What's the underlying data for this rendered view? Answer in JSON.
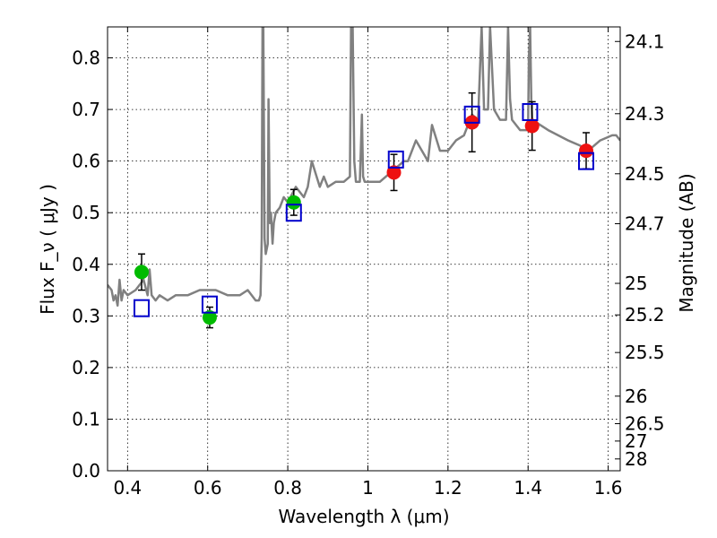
{
  "chart_data": {
    "type": "scatter",
    "xlabel": "Wavelength  λ (μm)",
    "ylabel": "Flux  F_ν  ( μJy )",
    "y2label": "Magnitude (AB)",
    "xlim": [
      0.35,
      1.63
    ],
    "ylim": [
      0.0,
      0.86
    ],
    "grid": true,
    "x_ticks": [
      0.4,
      0.6,
      0.8,
      1.0,
      1.2,
      1.4,
      1.6
    ],
    "x_tick_labels": [
      "0.4",
      "0.6",
      "0.8",
      "1",
      "1.2",
      "1.4",
      "1.6"
    ],
    "y_ticks": [
      0.0,
      0.1,
      0.2,
      0.3,
      0.4,
      0.5,
      0.6,
      0.7,
      0.8
    ],
    "y_tick_labels": [
      "0.0",
      "0.1",
      "0.2",
      "0.3",
      "0.4",
      "0.5",
      "0.6",
      "0.7",
      "0.8"
    ],
    "mag_ticks": [
      "24.1",
      "24.3",
      "24.5",
      "24.7",
      "25",
      "25.2",
      "25.5",
      "26",
      "26.5",
      "27",
      "28"
    ],
    "spectrum": {
      "color": "#808080",
      "x": [
        0.35,
        0.36,
        0.365,
        0.37,
        0.375,
        0.38,
        0.385,
        0.39,
        0.4,
        0.42,
        0.44,
        0.45,
        0.455,
        0.46,
        0.47,
        0.48,
        0.5,
        0.52,
        0.55,
        0.58,
        0.6,
        0.62,
        0.65,
        0.68,
        0.7,
        0.72,
        0.728,
        0.732,
        0.735,
        0.737,
        0.739,
        0.742,
        0.745,
        0.75,
        0.752,
        0.755,
        0.758,
        0.762,
        0.765,
        0.77,
        0.78,
        0.79,
        0.8,
        0.82,
        0.84,
        0.85,
        0.86,
        0.88,
        0.89,
        0.9,
        0.92,
        0.94,
        0.955,
        0.958,
        0.962,
        0.966,
        0.97,
        0.98,
        0.985,
        0.988,
        0.992,
        1.0,
        1.03,
        1.06,
        1.09,
        1.1,
        1.12,
        1.15,
        1.16,
        1.18,
        1.2,
        1.22,
        1.24,
        1.26,
        1.275,
        1.28,
        1.284,
        1.29,
        1.3,
        1.305,
        1.31,
        1.315,
        1.33,
        1.345,
        1.35,
        1.355,
        1.36,
        1.38,
        1.4,
        1.402,
        1.405,
        1.408,
        1.41,
        1.45,
        1.5,
        1.53,
        1.55,
        1.58,
        1.61,
        1.62,
        1.63
      ],
      "y": [
        0.36,
        0.35,
        0.33,
        0.34,
        0.32,
        0.37,
        0.33,
        0.35,
        0.34,
        0.35,
        0.37,
        0.34,
        0.39,
        0.34,
        0.33,
        0.34,
        0.33,
        0.34,
        0.34,
        0.35,
        0.35,
        0.35,
        0.34,
        0.34,
        0.35,
        0.33,
        0.33,
        0.34,
        0.45,
        0.86,
        0.86,
        0.45,
        0.42,
        0.44,
        0.72,
        0.48,
        0.5,
        0.44,
        0.48,
        0.5,
        0.51,
        0.53,
        0.52,
        0.55,
        0.53,
        0.55,
        0.6,
        0.55,
        0.57,
        0.55,
        0.56,
        0.56,
        0.57,
        0.86,
        0.86,
        0.6,
        0.56,
        0.56,
        0.69,
        0.57,
        0.56,
        0.56,
        0.56,
        0.58,
        0.6,
        0.6,
        0.64,
        0.6,
        0.67,
        0.62,
        0.62,
        0.64,
        0.65,
        0.69,
        0.68,
        0.78,
        0.86,
        0.7,
        0.7,
        0.86,
        0.78,
        0.7,
        0.68,
        0.68,
        0.86,
        0.72,
        0.68,
        0.66,
        0.66,
        0.8,
        0.86,
        0.72,
        0.68,
        0.66,
        0.64,
        0.63,
        0.62,
        0.64,
        0.65,
        0.65,
        0.64
      ]
    },
    "series": [
      {
        "marker": "circle",
        "color": "#00bb00",
        "x": [
          0.435,
          0.605,
          0.815
        ],
        "y": [
          0.385,
          0.297,
          0.52
        ],
        "err": [
          0.035,
          0.02,
          0.025
        ]
      },
      {
        "marker": "circle",
        "color": "#ee1111",
        "x": [
          1.065,
          1.26,
          1.41,
          1.545
        ],
        "y": [
          0.578,
          0.675,
          0.668,
          0.62
        ],
        "err": [
          0.035,
          0.057,
          0.047,
          0.035
        ]
      },
      {
        "marker": "square",
        "color": "#0000cc",
        "x": [
          0.435,
          0.605,
          0.815,
          1.07,
          1.26,
          1.405,
          1.545
        ],
        "y": [
          0.315,
          0.322,
          0.5,
          0.603,
          0.69,
          0.695,
          0.6
        ]
      }
    ]
  }
}
